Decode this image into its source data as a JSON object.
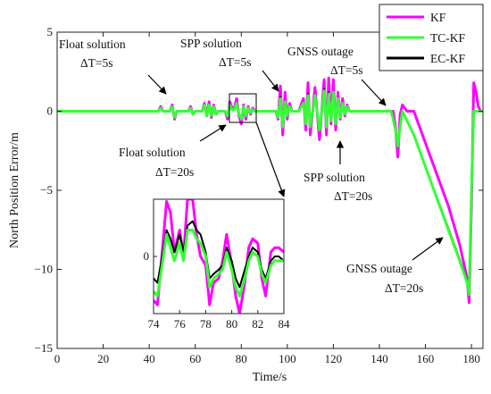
{
  "chart_data": {
    "type": "line",
    "xlabel": "Time/s",
    "ylabel": "North Position Error/m",
    "xlim": [
      0,
      185
    ],
    "ylim": [
      -15,
      5
    ],
    "xticks": [
      "0",
      "20",
      "40",
      "60",
      "80",
      "100",
      "120",
      "140",
      "160",
      "180"
    ],
    "yticks": [
      "5",
      "0",
      "−5",
      "−10",
      "−15"
    ],
    "legend_position": "top-right",
    "colors": {
      "KF": "#ff00ff",
      "TC-KF": "#33ff33",
      "EC-KF": "#000000"
    },
    "series": [
      {
        "name": "KF",
        "x": [
          0,
          44,
          45,
          46,
          49,
          50,
          51,
          52,
          57,
          58,
          59,
          60,
          63,
          64,
          65,
          66,
          67,
          68,
          69,
          70,
          73,
          74,
          75,
          76,
          77,
          78,
          79,
          80,
          81,
          82,
          83,
          84,
          85,
          86,
          95,
          96,
          97,
          98,
          99,
          100,
          101,
          102,
          105,
          107,
          108,
          109,
          110,
          112,
          114,
          116,
          117,
          118,
          119,
          120,
          121,
          122,
          123,
          124,
          125,
          126,
          127,
          130,
          140,
          146,
          147,
          148,
          149,
          150,
          151,
          152,
          155,
          160,
          170,
          175,
          178,
          179,
          180,
          181,
          182,
          183,
          184,
          185
        ],
        "y": [
          0,
          0,
          0.3,
          0,
          0,
          0.4,
          -0.5,
          0,
          0,
          0.3,
          -0.2,
          0,
          0,
          0.5,
          -0.3,
          0.6,
          -0.4,
          0.4,
          -0.2,
          0,
          0,
          -0.5,
          0.6,
          0.2,
          0.2,
          0.8,
          -0.3,
          -0.8,
          0.4,
          -0.5,
          0.3,
          -0.2,
          0.2,
          0,
          0,
          -0.5,
          1.6,
          -1.5,
          1.2,
          -0.5,
          0.5,
          0,
          0,
          0.8,
          -1.2,
          1.8,
          -1.5,
          1.5,
          -1.8,
          2.0,
          -1.5,
          2.1,
          -0.8,
          2.0,
          -1.2,
          1.2,
          -0.5,
          0.8,
          -0.3,
          0.4,
          0,
          0,
          0,
          0,
          -1.0,
          -2.9,
          -0.2,
          0.4,
          0.2,
          0,
          0,
          -2.0,
          -6.0,
          -8.5,
          -10.5,
          -12.1,
          -6.0,
          1.8,
          1.2,
          0.3,
          0,
          0
        ]
      },
      {
        "name": "TC-KF",
        "x": [
          0,
          44,
          45,
          46,
          49,
          50,
          51,
          52,
          57,
          58,
          59,
          60,
          63,
          64,
          65,
          66,
          67,
          68,
          69,
          70,
          73,
          74,
          75,
          76,
          77,
          78,
          79,
          80,
          81,
          82,
          83,
          84,
          85,
          86,
          95,
          96,
          97,
          98,
          99,
          100,
          101,
          102,
          105,
          107,
          108,
          109,
          110,
          112,
          114,
          116,
          117,
          118,
          119,
          120,
          121,
          122,
          123,
          124,
          125,
          126,
          127,
          130,
          140,
          145,
          146,
          147,
          148,
          149,
          150,
          155,
          160,
          170,
          175,
          178,
          179,
          180,
          181,
          182,
          185
        ],
        "y": [
          0,
          0,
          0.2,
          0,
          0,
          0.3,
          -0.4,
          0,
          0,
          0.2,
          -0.2,
          0,
          0,
          0.4,
          -0.3,
          0.4,
          -0.3,
          0.3,
          -0.2,
          0,
          0,
          -0.3,
          0.4,
          0.1,
          0.1,
          0.5,
          -0.2,
          -0.5,
          0.3,
          -0.3,
          0.2,
          -0.1,
          0.1,
          0,
          0,
          -0.4,
          0.8,
          -1.0,
          0.6,
          -0.3,
          0.3,
          0,
          0,
          0.5,
          -0.8,
          1.0,
          -1.0,
          1.0,
          -1.2,
          1.3,
          -1.0,
          1.1,
          -0.6,
          1.2,
          -0.8,
          0.8,
          -0.4,
          0.5,
          -0.2,
          0.3,
          0,
          0,
          0,
          0,
          -0.5,
          -1.2,
          -2.2,
          -1.0,
          0,
          -1.5,
          -3.5,
          -7.5,
          -9.5,
          -10.8,
          -11.6,
          -5.0,
          0,
          0,
          0
        ]
      },
      {
        "name": "EC-KF",
        "x": [
          0,
          44,
          45,
          46,
          49,
          50,
          51,
          52,
          57,
          58,
          59,
          60,
          63,
          64,
          65,
          66,
          67,
          68,
          69,
          70,
          73,
          74,
          75,
          76,
          77,
          78,
          79,
          80,
          81,
          82,
          83,
          84,
          85,
          86,
          95,
          96,
          97,
          98,
          99,
          100,
          101,
          102,
          105,
          107,
          108,
          109,
          110,
          112,
          114,
          116,
          117,
          118,
          119,
          120,
          121,
          122,
          123,
          124,
          125,
          126,
          127,
          130,
          140,
          145,
          146,
          147,
          148,
          149,
          150,
          155,
          160,
          170,
          175,
          178,
          179,
          180,
          181,
          182,
          185
        ],
        "y": [
          0,
          0,
          0.2,
          0,
          0,
          0.3,
          -0.4,
          0,
          0,
          0.2,
          -0.2,
          0,
          0,
          0.4,
          -0.3,
          0.4,
          -0.3,
          0.3,
          -0.2,
          0,
          0,
          -0.3,
          0.4,
          0.1,
          0.1,
          0.5,
          -0.2,
          -0.5,
          0.3,
          -0.3,
          0.2,
          -0.1,
          0.1,
          0,
          0,
          -0.4,
          0.9,
          -1.0,
          0.6,
          -0.3,
          0.3,
          0,
          0,
          0.5,
          -0.8,
          1.1,
          -1.0,
          1.0,
          -1.2,
          1.4,
          -1.0,
          1.2,
          -0.6,
          1.2,
          -0.8,
          0.8,
          -0.4,
          0.5,
          -0.2,
          0.3,
          0,
          0,
          0,
          0,
          -0.5,
          -1.2,
          -2.2,
          -1.0,
          0,
          -1.5,
          -3.5,
          -7.4,
          -9.4,
          -10.7,
          -11.5,
          -5.0,
          0,
          0,
          0
        ]
      }
    ],
    "annotations": [
      {
        "line1": "Float solution",
        "line2": "ΔT=5s"
      },
      {
        "line1": "SPP solution",
        "line2": "ΔT=5s"
      },
      {
        "line1": "GNSS outage",
        "line2": "ΔT=5s"
      },
      {
        "line1": "Float solution",
        "line2": "ΔT=20s"
      },
      {
        "line1": "SPP solution",
        "line2": "ΔT=20s"
      },
      {
        "line1": "GNSS outage",
        "line2": "ΔT=20s"
      }
    ],
    "inset": {
      "xlim": [
        74,
        84
      ],
      "ylim": [
        -1.3,
        1.3
      ],
      "xticks": [
        "74",
        "76",
        "78",
        "80",
        "82",
        "84"
      ],
      "yticks": [
        "0"
      ],
      "series": [
        {
          "name": "KF",
          "x": [
            74,
            74.3,
            74.6,
            75,
            75.3,
            75.6,
            76,
            76.3,
            76.6,
            77,
            77.3,
            77.6,
            78,
            78.3,
            78.6,
            79,
            79.3,
            79.6,
            80,
            80.3,
            80.6,
            81,
            81.3,
            81.6,
            82,
            82.3,
            82.6,
            83,
            83.3,
            83.6,
            84
          ],
          "y": [
            -1.0,
            -1.1,
            -0.1,
            1.25,
            1.0,
            0.1,
            0.6,
            0.0,
            1.3,
            1.3,
            0.5,
            0.0,
            -0.2,
            -1.1,
            -0.6,
            -0.5,
            -0.1,
            0.5,
            -0.2,
            -0.9,
            -1.3,
            -0.6,
            0.2,
            0.4,
            0.3,
            -0.5,
            -0.9,
            0.1,
            0.2,
            0.2,
            0.1
          ]
        },
        {
          "name": "TC-KF",
          "x": [
            74,
            74.3,
            74.6,
            75,
            75.3,
            75.6,
            76,
            76.3,
            76.6,
            77,
            77.3,
            77.6,
            78,
            78.3,
            78.6,
            79,
            79.3,
            79.6,
            80,
            80.3,
            80.6,
            81,
            81.3,
            81.6,
            82,
            82.3,
            82.6,
            83,
            83.3,
            83.6,
            84
          ],
          "y": [
            -0.8,
            -0.9,
            -0.3,
            0.5,
            0.2,
            -0.1,
            0.3,
            -0.1,
            0.6,
            0.6,
            0.4,
            0.3,
            0.0,
            -0.7,
            -0.5,
            -0.4,
            -0.3,
            0.1,
            -0.3,
            -0.7,
            -0.9,
            -0.5,
            -0.1,
            0.1,
            0.0,
            -0.4,
            -0.6,
            -0.2,
            -0.1,
            -0.1,
            -0.1
          ]
        },
        {
          "name": "EC-KF",
          "x": [
            74,
            74.3,
            74.6,
            75,
            75.3,
            75.6,
            76,
            76.3,
            76.6,
            77,
            77.3,
            77.6,
            78,
            78.3,
            78.6,
            79,
            79.3,
            79.6,
            80,
            80.3,
            80.6,
            81,
            81.3,
            81.6,
            82,
            82.3,
            82.6,
            83,
            83.3,
            83.6,
            84
          ],
          "y": [
            -0.5,
            -0.6,
            -0.1,
            0.6,
            0.4,
            0.1,
            0.5,
            0.1,
            0.7,
            0.8,
            0.6,
            0.5,
            0.1,
            -0.5,
            -0.4,
            -0.3,
            -0.2,
            0.2,
            -0.1,
            -0.5,
            -0.7,
            -0.3,
            0.0,
            0.2,
            0.1,
            -0.3,
            -0.5,
            -0.1,
            0.0,
            0.0,
            -0.1
          ]
        }
      ]
    }
  }
}
